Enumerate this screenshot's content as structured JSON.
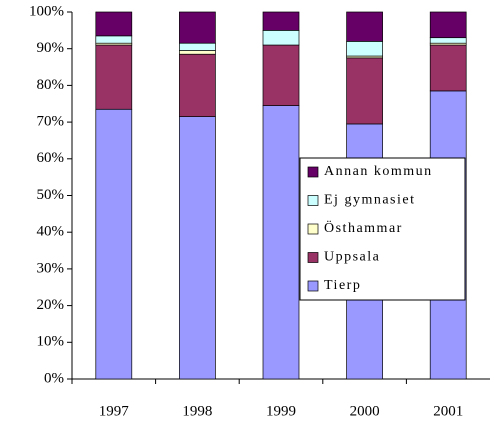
{
  "chart_data": {
    "type": "stacked_bar",
    "categories": [
      "1997",
      "1998",
      "1999",
      "2000",
      "2001"
    ],
    "series": [
      {
        "name": "Tierp",
        "color": "#9999ff",
        "values": [
          73.5,
          71.5,
          74.5,
          69.5,
          78.5
        ]
      },
      {
        "name": "Uppsala",
        "color": "#993366",
        "values": [
          17.5,
          17,
          16.5,
          18,
          12.5
        ]
      },
      {
        "name": "Östhammar",
        "color": "#ffffcc",
        "values": [
          0.5,
          1,
          0,
          0.5,
          0.5
        ]
      },
      {
        "name": "Ej gymnasiet",
        "color": "#ccffff",
        "values": [
          2,
          2,
          4,
          4,
          1.5
        ]
      },
      {
        "name": "Annan kommun",
        "color": "#660066",
        "values": [
          6.5,
          8.5,
          5,
          8,
          7
        ]
      }
    ],
    "ylim": [
      0,
      100
    ],
    "yticks": [
      {
        "value": 0,
        "label": "0%"
      },
      {
        "value": 10,
        "label": "10%"
      },
      {
        "value": 20,
        "label": "20%"
      },
      {
        "value": 30,
        "label": "30%"
      },
      {
        "value": 40,
        "label": "40%"
      },
      {
        "value": 50,
        "label": "50%"
      },
      {
        "value": 60,
        "label": "60%"
      },
      {
        "value": 70,
        "label": "70%"
      },
      {
        "value": 80,
        "label": "80%"
      },
      {
        "value": 90,
        "label": "90%"
      },
      {
        "value": 100,
        "label": "100%"
      }
    ],
    "legend": "right"
  }
}
